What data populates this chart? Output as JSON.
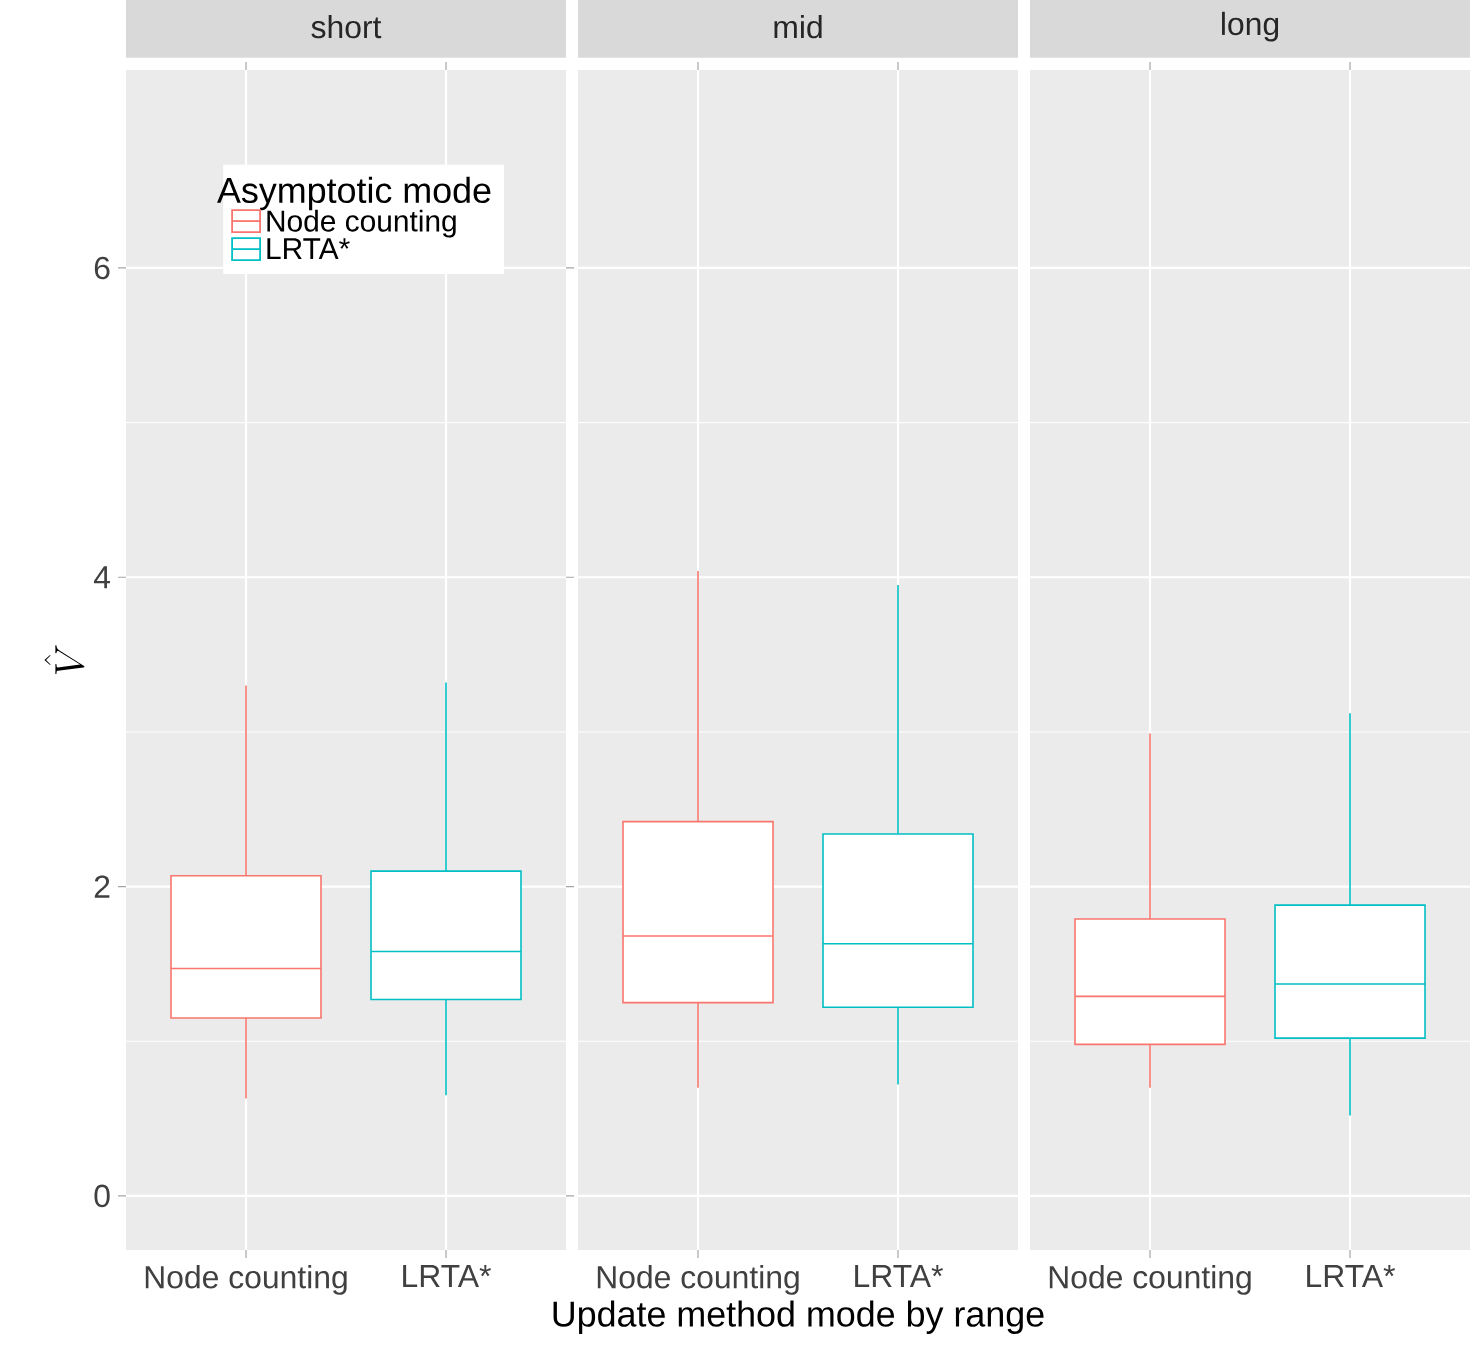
{
  "chart_data": [
    {
      "type": "box",
      "title": "short",
      "ylabel": "\\hat{V}",
      "legend_title": "Asymptotic mode",
      "legend": "top left",
      "grid": true,
      "ylim": [
        -0.35,
        7.28
      ],
      "yticks": [
        0,
        2,
        4,
        6
      ],
      "categories": [
        "Node counting",
        "LRTA*"
      ],
      "series": [
        {
          "name": "Node counting",
          "color": "#F8766D",
          "boxes": [
            {
              "low": 0.63,
              "q1": 1.15,
              "median": 1.47,
              "q3": 2.07,
              "high": 3.3
            },
            null
          ]
        },
        {
          "name": "LRTA*",
          "color": "#00BFC4",
          "boxes": [
            null,
            {
              "low": 0.65,
              "q1": 1.27,
              "median": 1.58,
              "q3": 2.1,
              "high": 3.32
            }
          ]
        }
      ]
    },
    {
      "type": "box",
      "title": "mid",
      "xlabel": "Update method mode by range",
      "grid": true,
      "tick_labels": "x",
      "ylim": [
        -0.35,
        7.28
      ],
      "yticks": [
        0,
        2,
        4,
        6
      ],
      "categories": [
        "Node counting",
        "LRTA*"
      ],
      "series": [
        {
          "color": "#F8766D",
          "boxes": [
            {
              "low": 0.7,
              "q1": 1.25,
              "median": 1.68,
              "q3": 2.42,
              "high": 4.04
            },
            null
          ]
        },
        {
          "color": "#00BFC4",
          "boxes": [
            null,
            {
              "low": 0.72,
              "q1": 1.22,
              "median": 1.63,
              "q3": 2.34,
              "high": 3.95
            }
          ]
        }
      ]
    },
    {
      "type": "box",
      "title": "long",
      "grid": true,
      "tick_labels": "x",
      "ylim": [
        -0.35,
        7.28
      ],
      "yticks": [
        0,
        2,
        4,
        6
      ],
      "categories": [
        "Node counting",
        "LRTA*"
      ],
      "series": [
        {
          "color": "#F8766D",
          "boxes": [
            {
              "low": 0.7,
              "q1": 0.98,
              "median": 1.29,
              "q3": 1.79,
              "high": 2.99
            },
            null
          ]
        },
        {
          "color": "#00BFC4",
          "boxes": [
            null,
            {
              "low": 0.52,
              "q1": 1.02,
              "median": 1.37,
              "q3": 1.88,
              "high": 3.12
            }
          ]
        }
      ]
    }
  ]
}
